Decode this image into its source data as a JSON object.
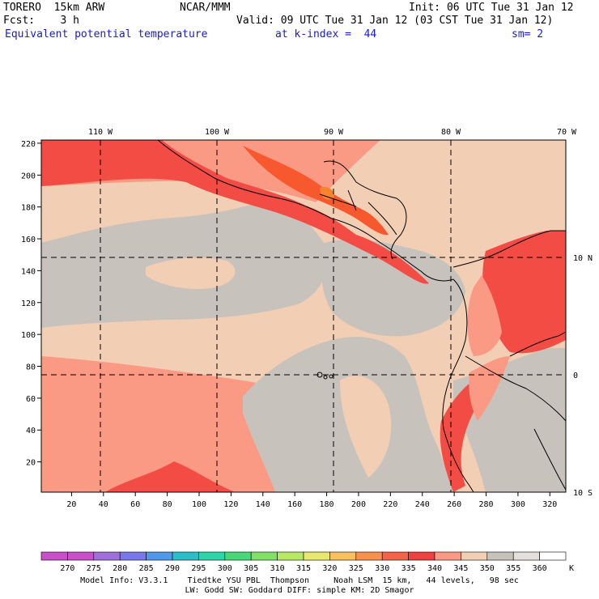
{
  "header": {
    "model": "TORERO  15km ARW",
    "org": "NCAR/MMM",
    "init": "Init: 06 UTC Tue 31 Jan 12",
    "fcst": "Fcst:    3 h",
    "valid": "Valid: 09 UTC Tue 31 Jan 12 (03 CST Tue 31 Jan 12)",
    "field": "Equivalent potential temperature",
    "level": "at k-index =  44",
    "smooth": "sm= 2"
  },
  "map": {
    "lon_labels": [
      "110 W",
      "100 W",
      "90 W",
      "80 W",
      "70 W"
    ],
    "lat_labels": [
      "10 N",
      "0",
      "10 S"
    ],
    "x_ticks": [
      "20",
      "40",
      "60",
      "80",
      "100",
      "120",
      "140",
      "160",
      "180",
      "200",
      "220",
      "240",
      "260",
      "280",
      "300",
      "320"
    ],
    "y_ticks": [
      "20",
      "40",
      "60",
      "80",
      "100",
      "120",
      "140",
      "160",
      "180",
      "200",
      "220"
    ],
    "colors": {
      "c335": "#f24c44",
      "c340": "#fa9a84",
      "c345": "#f2cfb4",
      "c350": "#c8c2bc",
      "c325": "#f8822e",
      "c330": "#f8582e",
      "land": "#000000"
    }
  },
  "colorbar": {
    "labels": [
      "270",
      "275",
      "280",
      "285",
      "290",
      "295",
      "300",
      "305",
      "310",
      "315",
      "320",
      "325",
      "330",
      "335",
      "340",
      "345",
      "350",
      "355",
      "360"
    ],
    "unit": "K",
    "colors": [
      "#c850c8",
      "#a070d8",
      "#7878e8",
      "#5098e8",
      "#28c0c8",
      "#28d8a8",
      "#48d878",
      "#80e068",
      "#b8e868",
      "#e8e870",
      "#f8c060",
      "#f89050",
      "#f86048",
      "#f04040",
      "#fa9a84",
      "#f2cfb4",
      "#c8c2bc",
      "#e4e0dc",
      "#ffffff"
    ]
  },
  "footer": {
    "line1": "Model Info: V3.3.1    Tiedtke YSU PBL  Thompson     Noah LSM  15 km,   44 levels,   98 sec",
    "line2": "LW: Godd SW: Goddard DIFF: simple KM: 2D Smagor"
  }
}
